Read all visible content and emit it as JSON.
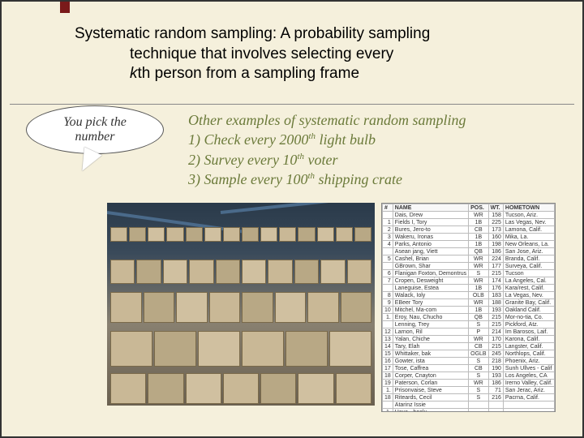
{
  "definition": {
    "line1": "Systematic random sampling: A probability sampling",
    "line2": "technique that involves selecting every",
    "line3_prefix": "k",
    "line3_suffix": "th person from a sampling frame"
  },
  "bubble": {
    "line1": "You pick the",
    "line2": "number"
  },
  "examples": {
    "title": "Other examples of systematic random sampling",
    "item1_pre": "1) Check every 2000",
    "item1_sup": "th",
    "item1_post": " light bulb",
    "item2_pre": "2)  Survey every 10",
    "item2_sup": "th",
    "item2_post": " voter",
    "item3_pre": "3)  Sample every 100",
    "item3_sup": "th",
    "item3_post": " shipping crate"
  },
  "roster": {
    "headers": [
      "#",
      "NAME",
      "POS.",
      "WT.",
      "HOMETOWN"
    ],
    "rows": [
      [
        "",
        "Dais, Drew",
        "WR",
        "158",
        "Tucson, Ariz."
      ],
      [
        "1",
        "Fields I, Tory",
        "1B",
        "225",
        "Las Vegas, Nev."
      ],
      [
        "2",
        "Bures, Jero-to",
        "CB",
        "173",
        "Lamona, Calif."
      ],
      [
        "3",
        "Wakeru, Ironas",
        "1B",
        "160",
        "Mika, La."
      ],
      [
        "4",
        "Parks, Antonio",
        "1B",
        "198",
        "New Orleans, La."
      ],
      [
        "",
        "Asean jang, Viett",
        "QB",
        "186",
        "San Jose, Ariz."
      ],
      [
        "5",
        "Cashel, Brian",
        "WR",
        "224",
        "Branda, Calif."
      ],
      [
        "",
        "GBrown, Shar",
        "WR",
        "177",
        "Surveya, Calif."
      ],
      [
        "6",
        "Flanigan Foxton, Demontrus",
        "S",
        "215",
        "Tucson"
      ],
      [
        "7",
        "Cropen, Desweight",
        "WR",
        "174",
        "La Angeles, Cal."
      ],
      [
        "",
        "Laneguise, Estea",
        "1B",
        "176",
        "Kara/rest, Calif."
      ],
      [
        "8",
        "Walack, Ioly",
        "OLB",
        "183",
        "La Vegas, Nev."
      ],
      [
        "9",
        "EBeer Tory",
        "WR",
        "188",
        "Granite Bay, Calif."
      ],
      [
        "10",
        "Mitchel, Ma-com",
        "1B",
        "193",
        "Oakland Calif."
      ],
      [
        "1.",
        "Eroy, Nau, Chucho",
        "QB",
        "215",
        "Mor-no-tia, Co."
      ],
      [
        "",
        "Lenning, Trey",
        "S",
        "215",
        "Pickford, Atz."
      ],
      [
        "12",
        "Larnon, Ril",
        "P",
        "214",
        "Im Barosos, Laif."
      ],
      [
        "13",
        "Yalan, Chiche",
        "WR",
        "170",
        "Karona, Calif."
      ],
      [
        "14",
        "Tary, Elah",
        "CB",
        "215",
        "Langster, Calif."
      ],
      [
        "15",
        "Whittaker, bak",
        "OGLB",
        "245",
        "Northlops, Calif."
      ],
      [
        "16",
        "Gowter, ista",
        "S",
        "218",
        "Phoenix, Ariz."
      ],
      [
        "17",
        "Tose, Caffrea",
        "CB",
        "190",
        "Sunh Ullves - Calif"
      ],
      [
        "18",
        "Corper, Cnayton",
        "S",
        "193",
        "Los Angeles, CA"
      ],
      [
        "19",
        "Paterson, Corlan",
        "WR",
        "186",
        "Irerno Valley, Calif."
      ],
      [
        "1.",
        "Prisonvaise, Steve",
        "S",
        "71",
        "San Jerac, Ariz."
      ],
      [
        "18",
        "Riteards, Cecil",
        "S",
        "216",
        "Pacrna, Calif."
      ],
      [
        "",
        "Atarinz Issie",
        "",
        "",
        ""
      ],
      [
        "1.",
        "Haya-, hoelu",
        "",
        "",
        ""
      ]
    ]
  },
  "warehouse": {
    "box_colors": [
      "#c9b896",
      "#b8a885",
      "#d0c0a0"
    ],
    "rafter_color": "#4a6a8a",
    "bg_top": "#2a3a4a",
    "bg_bottom": "#6a6050"
  }
}
